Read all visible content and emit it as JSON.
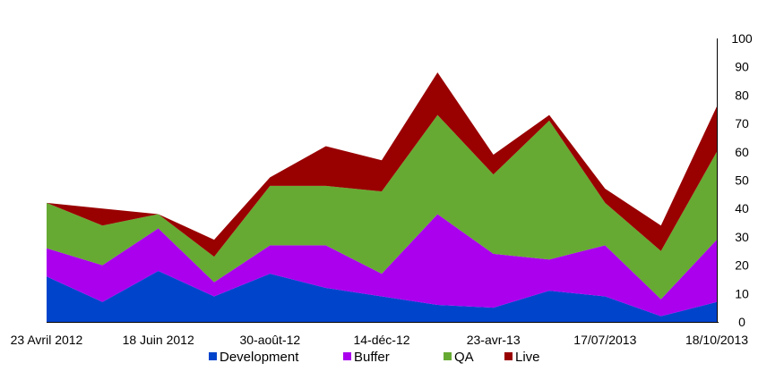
{
  "chart_data": {
    "type": "area",
    "stacked": true,
    "title": "",
    "xlabel": "",
    "ylabel": "",
    "ylim": [
      0,
      100
    ],
    "y_ticks": [
      0,
      10,
      20,
      30,
      40,
      50,
      60,
      70,
      80,
      90,
      100
    ],
    "y_axis_side": "right",
    "grid": false,
    "legend_position": "bottom",
    "x_tick_labels": [
      "23 Avril 2012",
      "18 Juin 2012",
      "30-août-12",
      "14-déc-12",
      "23-avr-13",
      "17/07/2013",
      "18/10/2013"
    ],
    "x_tick_label_indices": [
      0,
      2,
      4,
      6,
      8,
      10,
      12
    ],
    "series": [
      {
        "name": "Development",
        "color": "#0044cc",
        "values": [
          16,
          7,
          18,
          9,
          17,
          12,
          9,
          6,
          5,
          11,
          9,
          2,
          7
        ]
      },
      {
        "name": "Buffer",
        "color": "#aa00ee",
        "values": [
          10,
          13,
          15,
          5,
          10,
          15,
          8,
          32,
          19,
          11,
          18,
          6,
          22
        ]
      },
      {
        "name": "QA",
        "color": "#66aa33",
        "values": [
          16,
          14,
          5,
          9,
          21,
          21,
          29,
          35,
          28,
          49,
          15,
          17,
          31
        ]
      },
      {
        "name": "Live",
        "color": "#990000",
        "values": [
          0,
          6,
          0,
          6,
          3,
          14,
          11,
          15,
          7,
          2,
          5,
          9,
          16
        ]
      }
    ]
  }
}
